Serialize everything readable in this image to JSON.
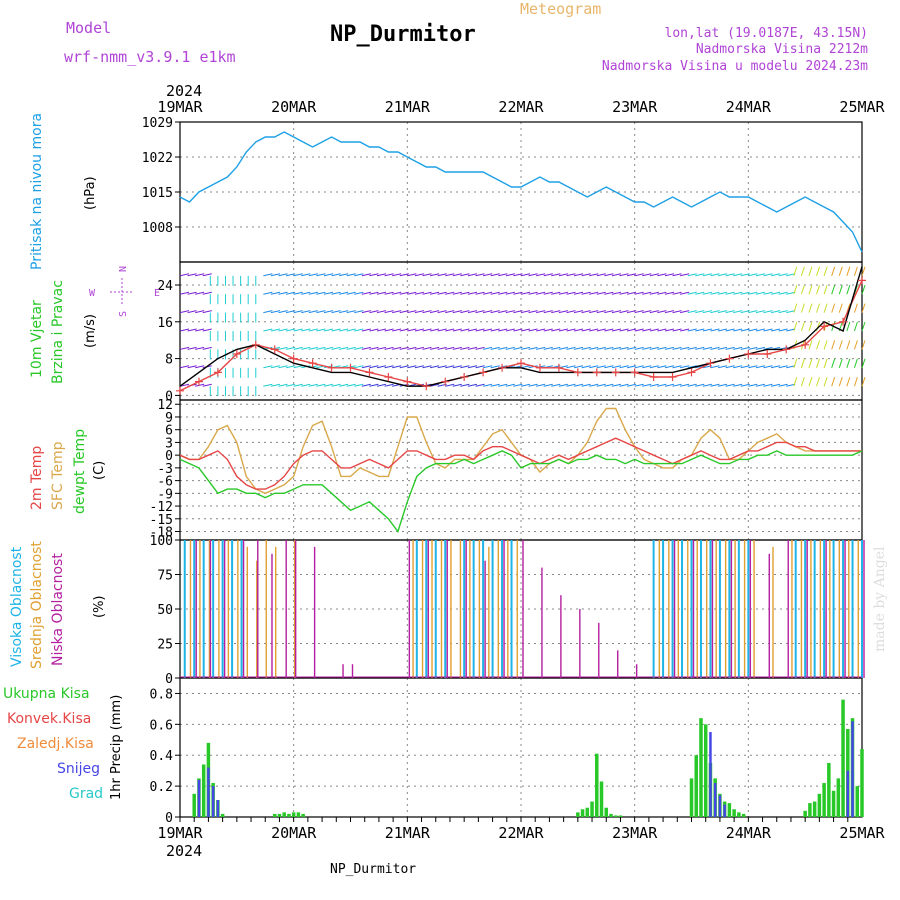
{
  "header": {
    "model_label": "Model",
    "model_name": "wrf-nmm_v3.9.1 e1km",
    "title": "NP_Durmitor",
    "meteogram": "Meteogram",
    "lonlat": "lon,lat (19.0187E, 43.15N)",
    "elevation": "Nadmorska Visina 2212m",
    "model_elevation": "Nadmorska Visina u modelu 2024.23m"
  },
  "footer": {
    "station": "NP_Durmitor",
    "credit": "made by Angel"
  },
  "colors": {
    "pressure": "#1ea0e6",
    "temp2m": "#e64646",
    "sfc": "#d9a84a",
    "dewpt": "#28c828",
    "high_cloud": "#1eb4e6",
    "mid_cloud": "#e0a030",
    "low_cloud": "#b41ea0",
    "total_precip": "#28c828",
    "conv_precip": "#e64646",
    "frz_precip": "#f08c3c",
    "snow": "#4646e6",
    "hail": "#28c8c8",
    "wind_axis": "#b044d6"
  },
  "chart_data": [
    {
      "type": "line",
      "panel": "pressure",
      "ylabel_main": "Pritisak na nivou mora",
      "ylabel_unit": "(hPa)",
      "x_ticks": [
        "19MAR",
        "20MAR",
        "21MAR",
        "22MAR",
        "23MAR",
        "24MAR",
        "25MAR"
      ],
      "year": "2024",
      "y_ticks": [
        "1029",
        "1022",
        "1015",
        "1008"
      ],
      "ylim": [
        1001,
        1029
      ],
      "x_hours": [
        0,
        2,
        4,
        6,
        8,
        10,
        12,
        14,
        16,
        18,
        20,
        22,
        24,
        26,
        28,
        30,
        32,
        34,
        36,
        38,
        40,
        42,
        44,
        46,
        48,
        50,
        52,
        54,
        56,
        58,
        60,
        62,
        64,
        66,
        68,
        70,
        72,
        74,
        76,
        78,
        80,
        82,
        84,
        86,
        88,
        90,
        92,
        94,
        96,
        98,
        100,
        102,
        104,
        106,
        108,
        110,
        112,
        114,
        116,
        118,
        120,
        122,
        124,
        126,
        128,
        130,
        132,
        134,
        136,
        138,
        140,
        142,
        144
      ],
      "values": [
        1014,
        1013,
        1015,
        1016,
        1017,
        1018,
        1020,
        1023,
        1025,
        1026,
        1026,
        1027,
        1026,
        1025,
        1024,
        1025,
        1026,
        1025,
        1025,
        1025,
        1024,
        1024,
        1023,
        1023,
        1022,
        1021,
        1020,
        1020,
        1019,
        1019,
        1019,
        1019,
        1019,
        1018,
        1017,
        1016,
        1016,
        1017,
        1018,
        1017,
        1017,
        1016,
        1015,
        1014,
        1015,
        1016,
        1015,
        1014,
        1013,
        1013,
        1012,
        1013,
        1014,
        1013,
        1012,
        1013,
        1014,
        1015,
        1014,
        1014,
        1014,
        1013,
        1012,
        1011,
        1012,
        1013,
        1014,
        1013,
        1012,
        1011,
        1009,
        1007,
        1003
      ]
    },
    {
      "type": "line",
      "panel": "wind",
      "ylabel_main": "10m Vjetar",
      "ylabel_sub": "Brzina i Pravac",
      "ylabel_unit": "(m/s)",
      "y_ticks": [
        "24",
        "16",
        "8",
        "0"
      ],
      "ylim": [
        -1,
        29
      ],
      "compass": {
        "n": "N",
        "s": "S",
        "e": "E",
        "w": "W"
      },
      "x_hours": [
        0,
        4,
        8,
        12,
        16,
        20,
        24,
        28,
        32,
        36,
        40,
        44,
        48,
        52,
        56,
        60,
        64,
        68,
        72,
        76,
        80,
        84,
        88,
        92,
        96,
        100,
        104,
        108,
        112,
        116,
        120,
        124,
        128,
        132,
        136,
        140,
        144
      ],
      "series": [
        {
          "values": [
            1,
            3,
            5,
            9,
            11,
            10,
            8,
            7,
            6,
            6,
            5,
            4,
            3,
            2,
            3,
            4,
            5,
            6,
            7,
            6,
            6,
            5,
            5,
            5,
            5,
            4,
            4,
            5,
            7,
            8,
            9,
            9,
            10,
            11,
            15,
            16,
            25
          ]
        },
        {
          "values": [
            2,
            5,
            8,
            10,
            11,
            9,
            7,
            6,
            5,
            5,
            4,
            3,
            2,
            2,
            3,
            4,
            5,
            6,
            6,
            5,
            5,
            5,
            5,
            5,
            5,
            5,
            5,
            6,
            7,
            8,
            9,
            10,
            10,
            12,
            16,
            14,
            28
          ]
        }
      ]
    },
    {
      "type": "line",
      "panel": "temperature",
      "ylabel_main": "2m Temp",
      "ylabel_sub": "SFC Temp",
      "ylabel_sub2": "dewpt Temp",
      "ylabel_unit": "(C)",
      "y_ticks": [
        "12",
        "9",
        "6",
        "3",
        "0",
        "-3",
        "-6",
        "-9",
        "-12",
        "-15",
        "-18"
      ],
      "ylim": [
        -20,
        13
      ],
      "x_hours": [
        0,
        2,
        4,
        6,
        8,
        10,
        12,
        14,
        16,
        18,
        20,
        22,
        24,
        26,
        28,
        30,
        32,
        34,
        36,
        38,
        40,
        42,
        44,
        46,
        48,
        50,
        52,
        54,
        56,
        58,
        60,
        62,
        64,
        66,
        68,
        70,
        72,
        74,
        76,
        78,
        80,
        82,
        84,
        86,
        88,
        90,
        92,
        94,
        96,
        98,
        100,
        102,
        104,
        106,
        108,
        110,
        112,
        114,
        116,
        118,
        120,
        122,
        124,
        126,
        128,
        130,
        132,
        134,
        136,
        138,
        140,
        142,
        144
      ],
      "series": [
        {
          "name": "2m Temp",
          "values": [
            0,
            -1,
            -1,
            0,
            1,
            -1,
            -5,
            -7,
            -8,
            -8,
            -7,
            -5,
            -2,
            0,
            1,
            1,
            -1,
            -3,
            -3,
            -2,
            -1,
            -2,
            -3,
            -1,
            1,
            1,
            0,
            -1,
            -1,
            0,
            0,
            -1,
            1,
            2,
            2,
            1,
            0,
            -1,
            -2,
            -1,
            0,
            -1,
            0,
            1,
            2,
            3,
            4,
            3,
            2,
            1,
            0,
            -1,
            -2,
            -1,
            0,
            1,
            0,
            -1,
            -1,
            0,
            1,
            1,
            2,
            3,
            3,
            2,
            2,
            1,
            1,
            1,
            1,
            1,
            1
          ]
        },
        {
          "name": "SFC Temp",
          "values": [
            0,
            -1,
            -1,
            2,
            6,
            7,
            3,
            -5,
            -8,
            -9,
            -8,
            -7,
            -5,
            2,
            7,
            8,
            2,
            -5,
            -5,
            -3,
            -4,
            -5,
            -5,
            2,
            9,
            9,
            3,
            -2,
            -3,
            -1,
            -1,
            -1,
            2,
            5,
            6,
            3,
            0,
            -1,
            -4,
            -2,
            -1,
            -2,
            0,
            3,
            8,
            11,
            11,
            6,
            2,
            -1,
            -2,
            -3,
            -3,
            -1,
            0,
            4,
            6,
            4,
            -1,
            -1,
            1,
            3,
            4,
            5,
            3,
            2,
            1,
            1,
            1,
            1,
            1,
            1,
            1
          ]
        },
        {
          "name": "dewpt Temp",
          "values": [
            -1,
            -2,
            -3,
            -6,
            -9,
            -8,
            -8,
            -9,
            -9,
            -10,
            -9,
            -9,
            -8,
            -7,
            -7,
            -7,
            -9,
            -11,
            -13,
            -12,
            -11,
            -13,
            -15,
            -18,
            -11,
            -5,
            -3,
            -2,
            -2,
            -2,
            -1,
            -2,
            -1,
            0,
            1,
            0,
            -3,
            -2,
            -2,
            -2,
            -1,
            -2,
            -1,
            -1,
            0,
            -1,
            -1,
            -2,
            -1,
            -2,
            -2,
            -2,
            -2,
            -2,
            -1,
            0,
            -1,
            -2,
            -2,
            -1,
            -1,
            0,
            0,
            1,
            0,
            0,
            0,
            0,
            0,
            0,
            0,
            0,
            1
          ]
        }
      ]
    },
    {
      "type": "bar",
      "panel": "clouds",
      "ylabel_main": "Visoka Oblacnost",
      "ylabel_sub": "Srednja Oblacnost",
      "ylabel_sub2": "Niska Oblacnost",
      "ylabel_unit": "(%)",
      "y_ticks": [
        "100",
        "75",
        "50",
        "25",
        "0"
      ],
      "ylim": [
        0,
        100
      ],
      "series": [
        {
          "name": "Visoka Oblacnost",
          "x_hours": [
            1,
            3,
            5,
            7,
            9,
            11,
            13,
            50,
            52,
            54,
            56,
            60,
            62,
            64,
            66,
            68,
            70,
            100,
            102,
            104,
            106,
            108,
            110,
            112,
            114,
            116,
            118,
            120,
            130,
            132,
            134,
            136,
            138,
            140,
            142,
            144
          ],
          "values": [
            100,
            100,
            100,
            100,
            100,
            100,
            100,
            100,
            100,
            100,
            100,
            100,
            100,
            100,
            100,
            100,
            100,
            100,
            100,
            100,
            100,
            100,
            100,
            100,
            100,
            100,
            100,
            100,
            100,
            100,
            100,
            100,
            100,
            100,
            100,
            100
          ]
        },
        {
          "name": "Srednja Oblacnost",
          "x_hours": [
            2,
            4,
            6,
            8,
            10,
            12,
            14,
            16,
            18,
            20,
            24,
            49,
            51,
            53,
            55,
            57,
            59,
            61,
            63,
            65,
            67,
            69,
            71,
            101,
            103,
            105,
            107,
            109,
            111,
            113,
            115,
            117,
            119,
            121,
            125,
            129,
            131,
            133,
            135,
            137,
            139,
            141,
            143
          ],
          "values": [
            100,
            100,
            100,
            100,
            100,
            100,
            95,
            85,
            100,
            95,
            100,
            100,
            100,
            100,
            100,
            100,
            100,
            100,
            100,
            95,
            100,
            100,
            100,
            100,
            100,
            100,
            100,
            100,
            100,
            100,
            100,
            100,
            100,
            100,
            95,
            100,
            100,
            100,
            100,
            100,
            100,
            100,
            100
          ]
        },
        {
          "name": "Niska Oblacnost",
          "x_hours": [
            3,
            6,
            9,
            13,
            16,
            19,
            22,
            24,
            28,
            34,
            36,
            48,
            52,
            56,
            60,
            64,
            68,
            72,
            76,
            80,
            84,
            88,
            92,
            96,
            104,
            108,
            112,
            116,
            120,
            124,
            128,
            132,
            136,
            140,
            144
          ],
          "values": [
            100,
            100,
            100,
            100,
            100,
            90,
            100,
            100,
            95,
            10,
            10,
            100,
            100,
            100,
            100,
            85,
            100,
            100,
            80,
            60,
            50,
            40,
            20,
            10,
            100,
            100,
            100,
            100,
            100,
            90,
            100,
            100,
            100,
            100,
            100
          ]
        }
      ]
    },
    {
      "type": "bar",
      "panel": "precipitation",
      "ylabel_unit": "1hr Precip (mm)",
      "legend": [
        "Ukupna Kisa",
        "Konvek.Kisa",
        "Zaledj.Kisa",
        "Snijeg",
        "Grad"
      ],
      "y_ticks": [
        "0.8",
        "0.6",
        "0.4",
        "0.2",
        "0"
      ],
      "ylim": [
        0,
        0.9
      ],
      "series": [
        {
          "name": "Ukupna Kisa",
          "x_hours": [
            3,
            4,
            5,
            6,
            7,
            8,
            9,
            20,
            21,
            22,
            23,
            24,
            25,
            26,
            84,
            85,
            86,
            87,
            88,
            89,
            90,
            91,
            92,
            93,
            108,
            109,
            110,
            111,
            112,
            113,
            114,
            115,
            116,
            117,
            118,
            119,
            132,
            133,
            134,
            135,
            136,
            137,
            138,
            139,
            140,
            141,
            142,
            143,
            144
          ],
          "values": [
            0.15,
            0.25,
            0.34,
            0.48,
            0.22,
            0.11,
            0.02,
            0.02,
            0.02,
            0.03,
            0.02,
            0.03,
            0.03,
            0.02,
            0.03,
            0.05,
            0.06,
            0.1,
            0.41,
            0.23,
            0.06,
            0.02,
            0.01,
            0.01,
            0.25,
            0.4,
            0.64,
            0.6,
            0.35,
            0.25,
            0.15,
            0.1,
            0.09,
            0.05,
            0.03,
            0.02,
            0.04,
            0.09,
            0.1,
            0.15,
            0.22,
            0.35,
            0.17,
            0.25,
            0.76,
            0.57,
            0.64,
            0.2,
            0.44
          ]
        },
        {
          "name": "Snijeg",
          "x_hours": [
            4,
            6,
            7,
            8,
            112,
            113,
            114,
            115,
            141,
            142
          ],
          "values": [
            0.24,
            0.32,
            0.2,
            0.11,
            0.55,
            0.22,
            0.14,
            0.08,
            0.3,
            0.62
          ]
        }
      ]
    }
  ]
}
